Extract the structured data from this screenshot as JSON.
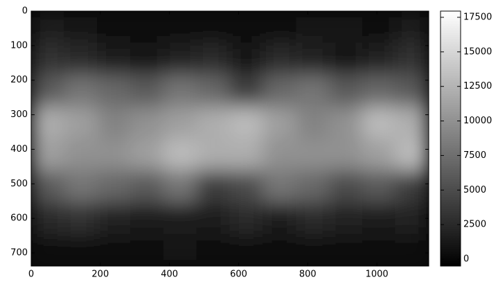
{
  "chart_data": {
    "type": "heatmap",
    "xlim": [
      0,
      1150
    ],
    "ylim": [
      738,
      0
    ],
    "xticks": [
      0,
      200,
      400,
      600,
      800,
      1000
    ],
    "yticks": [
      0,
      100,
      200,
      300,
      400,
      500,
      600,
      700
    ],
    "clim": [
      -500,
      17950
    ],
    "cticks": [
      0,
      2500,
      5000,
      7500,
      10000,
      12500,
      15000,
      17500
    ],
    "colormap": "gray",
    "z": [
      [
        1500,
        800,
        300,
        300,
        300,
        300,
        300,
        500,
        800,
        1000,
        500,
        1500
      ],
      [
        3000,
        2500,
        1500,
        1000,
        2000,
        2500,
        1000,
        2500,
        2000,
        800,
        2000,
        3000
      ],
      [
        6000,
        8000,
        7000,
        6000,
        8000,
        7000,
        4000,
        7000,
        8000,
        6000,
        7000,
        6000
      ],
      [
        12000,
        11000,
        9000,
        10000,
        11000,
        12000,
        13000,
        11000,
        9000,
        10000,
        13000,
        12000
      ],
      [
        11000,
        10000,
        10000,
        11000,
        13000,
        12000,
        12000,
        10000,
        10000,
        10000,
        11000,
        13000
      ],
      [
        6000,
        8000,
        7000,
        6000,
        8000,
        4000,
        5000,
        8000,
        7000,
        5000,
        6000,
        4000
      ],
      [
        2500,
        3000,
        2000,
        1500,
        1500,
        1500,
        2500,
        1500,
        2500,
        2000,
        1500,
        2000
      ],
      [
        500,
        500,
        300,
        300,
        800,
        600,
        300,
        300,
        500,
        300,
        300,
        300
      ]
    ]
  }
}
